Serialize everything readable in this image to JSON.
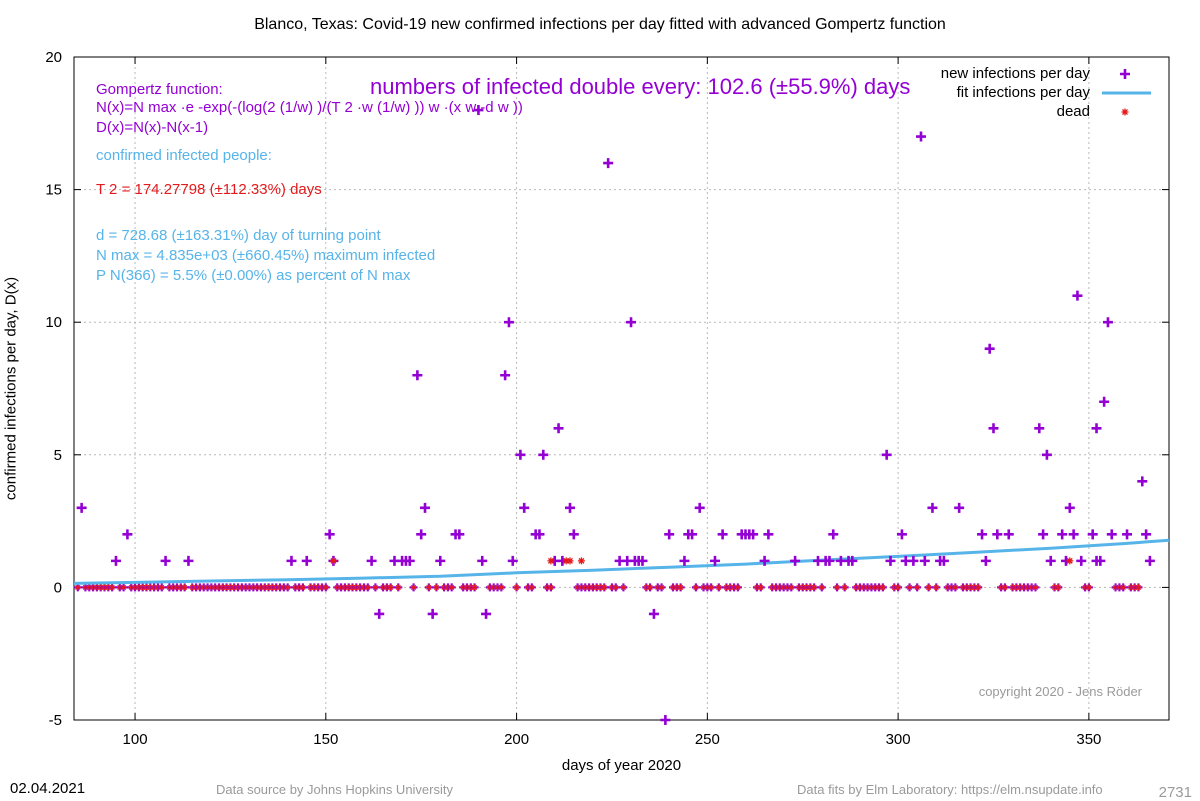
{
  "header": {
    "title": "Blanco,  Texas: Covid-19 new confirmed infections per day fitted with advanced Gompertz function",
    "headline": "numbers of infected double every: 102.6 (±55.9%) days"
  },
  "annotations": {
    "gompertz_title": "Gompertz function:",
    "nx_formula": "N(x)=N max ·e -exp(-(log(2 (1/w) )/(T 2 ·w (1/w) )) w ·(x w -d w ))",
    "dx_formula": "D(x)=N(x)-N(x-1)",
    "confirmed_label": "confirmed infected people:",
    "t2": "T 2 = 174.27798 (±112.33%) days",
    "d": "d = 728.68 (±163.31%) day of turning point",
    "nmax": "N max = 4.835e+03 (±660.45%) maximum infected",
    "pn": "P N(366) = 5.5% (±0.00%) as percent of N max"
  },
  "footer": {
    "date": "02.04.2021",
    "source_left": "Data source by Johns Hopkins University",
    "source_right": "Data fits by Elm Laboratory: https://elm.nsupdate.info",
    "corner_number": "2731",
    "copyright": "copyright 2020 - Jens Röder"
  },
  "colors": {
    "infections": "#9400d3",
    "fit": "#56b4e9",
    "dead": "#e41a1c",
    "grid": "#b0b0b0"
  },
  "chart_data": {
    "type": "scatter",
    "title": "Blanco,  Texas: Covid-19 new confirmed infections per day fitted with advanced Gompertz function",
    "xlabel": "days of year 2020",
    "ylabel": "confirmed infections per day, D(x)",
    "xlim": [
      84,
      371
    ],
    "ylim": [
      -5,
      20
    ],
    "xticks": [
      100,
      150,
      200,
      250,
      300,
      350
    ],
    "yticks": [
      -5,
      0,
      5,
      10,
      15,
      20
    ],
    "grid": true,
    "legend_position": "top-right",
    "series": [
      {
        "name": "new infections per day",
        "marker": "plus",
        "color": "#9400d3",
        "points": [
          [
            86,
            3
          ],
          [
            95,
            1
          ],
          [
            98,
            2
          ],
          [
            108,
            1
          ],
          [
            114,
            1
          ],
          [
            141,
            1
          ],
          [
            145,
            1
          ],
          [
            151,
            2
          ],
          [
            152,
            1
          ],
          [
            162,
            1
          ],
          [
            164,
            -1
          ],
          [
            168,
            1
          ],
          [
            170,
            1
          ],
          [
            171,
            1
          ],
          [
            172,
            1
          ],
          [
            174,
            8
          ],
          [
            175,
            2
          ],
          [
            176,
            3
          ],
          [
            178,
            -1
          ],
          [
            180,
            1
          ],
          [
            184,
            2
          ],
          [
            185,
            2
          ],
          [
            190,
            18
          ],
          [
            191,
            1
          ],
          [
            192,
            -1
          ],
          [
            197,
            8
          ],
          [
            198,
            10
          ],
          [
            199,
            1
          ],
          [
            201,
            5
          ],
          [
            202,
            3
          ],
          [
            205,
            2
          ],
          [
            206,
            2
          ],
          [
            207,
            5
          ],
          [
            210,
            1
          ],
          [
            211,
            6
          ],
          [
            212,
            1
          ],
          [
            214,
            3
          ],
          [
            215,
            2
          ],
          [
            224,
            16
          ],
          [
            227,
            1
          ],
          [
            229,
            1
          ],
          [
            230,
            10
          ],
          [
            231,
            1
          ],
          [
            232,
            1
          ],
          [
            233,
            1
          ],
          [
            236,
            -1
          ],
          [
            239,
            -5
          ],
          [
            240,
            2
          ],
          [
            244,
            1
          ],
          [
            245,
            2
          ],
          [
            246,
            2
          ],
          [
            248,
            3
          ],
          [
            252,
            1
          ],
          [
            254,
            2
          ],
          [
            259,
            2
          ],
          [
            260,
            2
          ],
          [
            261,
            2
          ],
          [
            262,
            2
          ],
          [
            265,
            1
          ],
          [
            266,
            2
          ],
          [
            273,
            1
          ],
          [
            279,
            1
          ],
          [
            281,
            1
          ],
          [
            282,
            1
          ],
          [
            283,
            2
          ],
          [
            285,
            1
          ],
          [
            287,
            1
          ],
          [
            288,
            1
          ],
          [
            297,
            5
          ],
          [
            298,
            1
          ],
          [
            301,
            2
          ],
          [
            302,
            1
          ],
          [
            304,
            1
          ],
          [
            306,
            17
          ],
          [
            307,
            1
          ],
          [
            309,
            3
          ],
          [
            311,
            1
          ],
          [
            312,
            1
          ],
          [
            316,
            3
          ],
          [
            322,
            2
          ],
          [
            323,
            1
          ],
          [
            324,
            9
          ],
          [
            325,
            6
          ],
          [
            326,
            2
          ],
          [
            329,
            2
          ],
          [
            337,
            6
          ],
          [
            338,
            2
          ],
          [
            339,
            5
          ],
          [
            340,
            1
          ],
          [
            343,
            2
          ],
          [
            344,
            1
          ],
          [
            345,
            3
          ],
          [
            346,
            2
          ],
          [
            347,
            11
          ],
          [
            348,
            1
          ],
          [
            351,
            2
          ],
          [
            352,
            1
          ],
          [
            352,
            6
          ],
          [
            353,
            1
          ],
          [
            354,
            7
          ],
          [
            355,
            10
          ],
          [
            356,
            2
          ],
          [
            360,
            2
          ],
          [
            364,
            4
          ],
          [
            365,
            2
          ],
          [
            366,
            1
          ]
        ]
      },
      {
        "name": "fit infections per day",
        "type": "line",
        "color": "#56b4e9",
        "points": [
          [
            84,
            0.15
          ],
          [
            100,
            0.19
          ],
          [
            120,
            0.24
          ],
          [
            140,
            0.29
          ],
          [
            160,
            0.35
          ],
          [
            180,
            0.42
          ],
          [
            200,
            0.55
          ],
          [
            220,
            0.65
          ],
          [
            240,
            0.76
          ],
          [
            260,
            0.88
          ],
          [
            280,
            1.03
          ],
          [
            300,
            1.17
          ],
          [
            320,
            1.32
          ],
          [
            340,
            1.48
          ],
          [
            360,
            1.66
          ],
          [
            371,
            1.78
          ]
        ]
      },
      {
        "name": "dead",
        "marker": "star",
        "color": "#e41a1c",
        "points": [
          [
            152,
            1
          ],
          [
            209,
            1
          ],
          [
            213,
            1
          ],
          [
            214,
            1
          ],
          [
            217,
            1
          ],
          [
            345,
            1
          ]
        ]
      }
    ]
  }
}
